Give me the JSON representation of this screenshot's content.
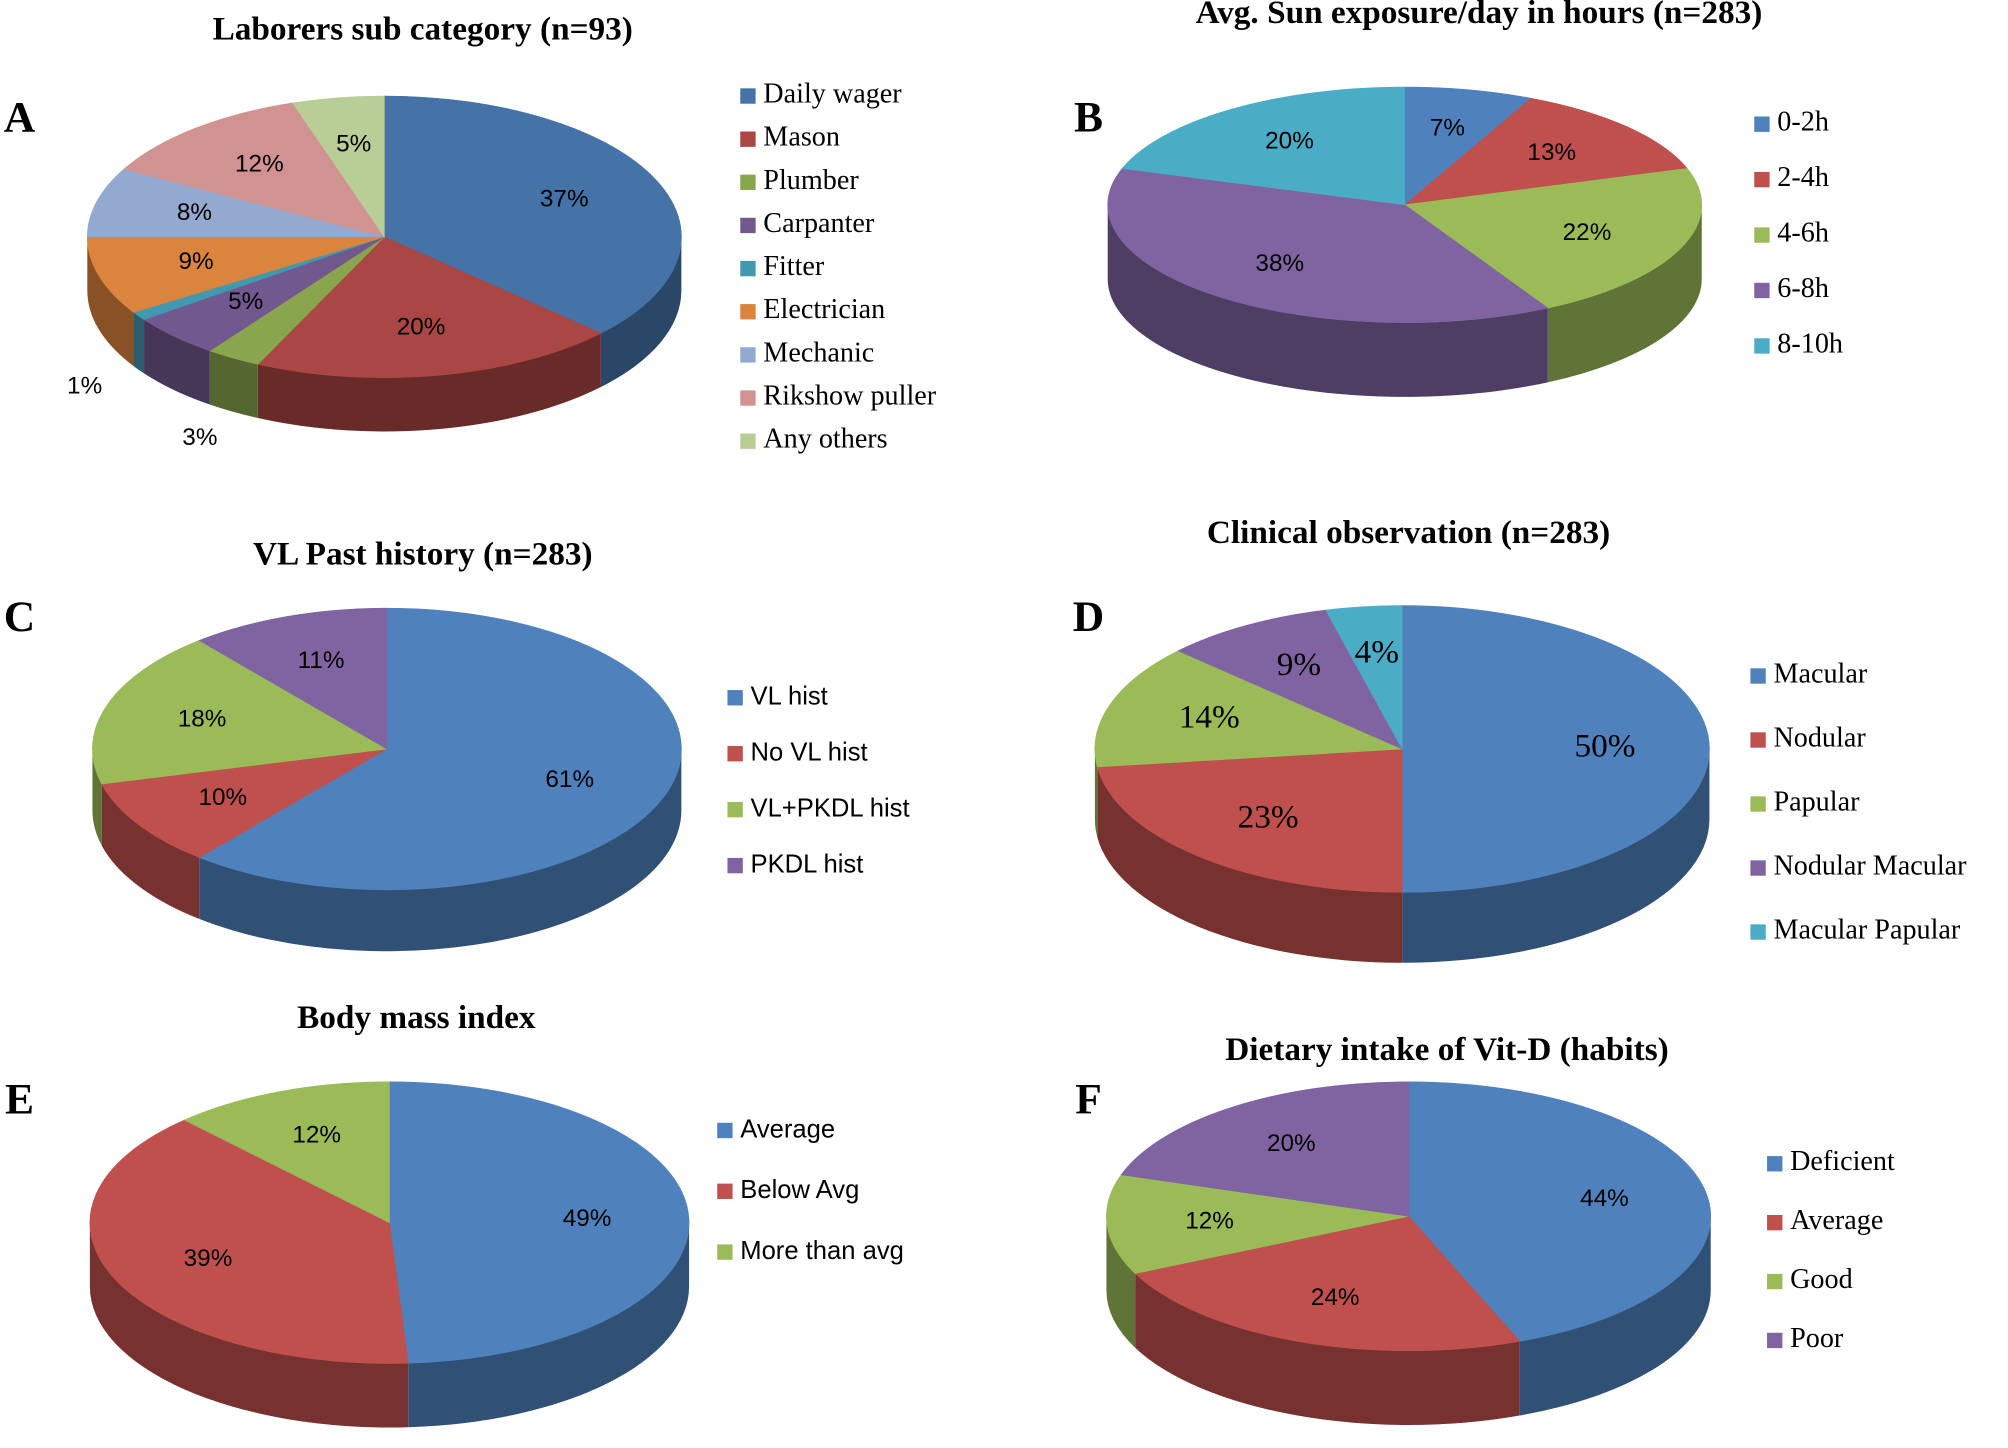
{
  "chart_data": [
    {
      "type": "pie",
      "panel": "A",
      "title": "Laborers sub category (n=93)",
      "categories": [
        "Daily wager",
        "Mason",
        "Plumber",
        "Carpanter",
        "Fitter",
        "Electrician",
        "Mechanic",
        "Rikshow puller",
        "Any others"
      ],
      "values": [
        37,
        20,
        3,
        5,
        1,
        9,
        8,
        12,
        5
      ],
      "value_labels": [
        "37%",
        "20%",
        "3%",
        "5%",
        "1%",
        "9%",
        "8%",
        "12%",
        "5%"
      ],
      "colors": [
        "#4572a7",
        "#aa4643",
        "#89a54e",
        "#71588f",
        "#4198af",
        "#db843d",
        "#93a9cf",
        "#d19392",
        "#b9cd96"
      ]
    },
    {
      "type": "pie",
      "panel": "B",
      "title": "Avg. Sun exposure/day in hours (n=283)",
      "categories": [
        "0-2h",
        "2-4h",
        "4-6h",
        "6-8h",
        "8-10h"
      ],
      "values": [
        7,
        13,
        22,
        38,
        20
      ],
      "value_labels": [
        "7%",
        "13%",
        "22%",
        "38%",
        "20%"
      ],
      "colors": [
        "#4f81bd",
        "#c0504d",
        "#9bbb59",
        "#8064a2",
        "#4bacc6"
      ]
    },
    {
      "type": "pie",
      "panel": "C",
      "title": "VL Past history (n=283)",
      "categories": [
        "VL hist",
        "No VL hist",
        "VL+PKDL hist",
        "PKDL hist"
      ],
      "values": [
        61,
        10,
        18,
        11
      ],
      "value_labels": [
        "61%",
        "10%",
        "18%",
        "11%"
      ],
      "colors": [
        "#4f81bd",
        "#c0504d",
        "#9bbb59",
        "#8064a2"
      ]
    },
    {
      "type": "pie",
      "panel": "D",
      "title": "Clinical observation (n=283)",
      "categories": [
        "Macular",
        "Nodular",
        "Papular",
        "Nodular Macular",
        "Macular Papular"
      ],
      "values": [
        50,
        23,
        14,
        9,
        4
      ],
      "value_labels": [
        "50%",
        "23%",
        "14%",
        "9%",
        "4%"
      ],
      "colors": [
        "#4f81bd",
        "#c0504d",
        "#9bbb59",
        "#8064a2",
        "#4bacc6"
      ]
    },
    {
      "type": "pie",
      "panel": "E",
      "title": "Body mass index",
      "categories": [
        "Average",
        "Below Avg",
        "More than avg"
      ],
      "values": [
        49,
        39,
        12
      ],
      "value_labels": [
        "49%",
        "39%",
        "12%"
      ],
      "colors": [
        "#4f81bd",
        "#c0504d",
        "#9bbb59"
      ]
    },
    {
      "type": "pie",
      "panel": "F",
      "title": "Dietary intake of Vit-D (habits)",
      "categories": [
        "Deficient",
        "Average",
        "Good",
        "Poor"
      ],
      "values": [
        44,
        24,
        12,
        20
      ],
      "value_labels": [
        "44%",
        "24%",
        "12%",
        "20%"
      ],
      "colors": [
        "#4f81bd",
        "#c0504d",
        "#9bbb59",
        "#8064a2"
      ]
    }
  ]
}
